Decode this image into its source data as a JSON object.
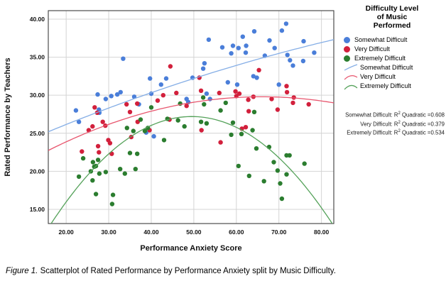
{
  "figure": {
    "caption": {
      "label": "Figure 1.",
      "text": " Scatterplot of Rated Performance by Performance Anxiety split by Music Difficulty."
    }
  },
  "chart_data": {
    "type": "scatter",
    "title": "",
    "xlabel": "Performance Anxiety Score",
    "ylabel": "Rated Performance by Teachers",
    "xlim": [
      15.8,
      82.9
    ],
    "ylim": [
      13.13,
      41.12
    ],
    "xticks": [
      20,
      30,
      40,
      50,
      60,
      70,
      80
    ],
    "yticks": [
      15,
      20,
      25,
      30,
      35,
      40
    ],
    "tick_decimals": 2,
    "grid": true,
    "grid_color": "#d4d4d4",
    "frame_color": "#3d3d3d",
    "legend_position": "right",
    "legend": {
      "title_lines": [
        "Difficulty Level",
        "of Music",
        "Performed"
      ],
      "dot_items": [
        "Somewhat Difficult",
        "Very Difficult",
        "Extremely Difficult"
      ],
      "line_items": [
        "Somewhat Difficult",
        "Very Difficult",
        "Extremely Difficult"
      ]
    },
    "r2_annotations": [
      {
        "pre": "Somewhat Difficult: R",
        "sup": "2",
        "post": " Quadratic =0.608"
      },
      {
        "pre": "Very Difficult: R",
        "sup": "2",
        "post": " Quadratic =0.379"
      },
      {
        "pre": "Extremely Difficult: R",
        "sup": "2",
        "post": " Quadratic =0.534"
      }
    ],
    "series": [
      {
        "name": "Somewhat Difficult",
        "marker_color": "#4a7ed9",
        "line_color": "#85aee6",
        "r2_quadratic": 0.608,
        "fit": {
          "type": "quadratic",
          "a": 21.386,
          "b": 0.25298,
          "c": -0.000734
        },
        "points": [
          [
            22.3,
            28.0
          ],
          [
            23.0,
            26.5
          ],
          [
            27.4,
            30.1
          ],
          [
            27.7,
            28.1
          ],
          [
            27.8,
            27.7
          ],
          [
            29.3,
            29.5
          ],
          [
            30.6,
            29.9
          ],
          [
            32.0,
            30.1
          ],
          [
            32.8,
            30.4
          ],
          [
            33.4,
            34.8
          ],
          [
            36.0,
            29.8
          ],
          [
            37.1,
            28.8
          ],
          [
            38.8,
            25.1
          ],
          [
            39.7,
            32.2
          ],
          [
            40.0,
            30.2
          ],
          [
            40.6,
            24.6
          ],
          [
            42.3,
            31.4
          ],
          [
            43.5,
            32.2
          ],
          [
            48.3,
            29.5
          ],
          [
            48.7,
            29.1
          ],
          [
            49.7,
            32.3
          ],
          [
            52.2,
            33.5
          ],
          [
            52.5,
            34.2
          ],
          [
            53.0,
            30.2
          ],
          [
            53.5,
            37.3
          ],
          [
            53.8,
            29.5
          ],
          [
            56.7,
            36.3
          ],
          [
            58.0,
            31.7
          ],
          [
            58.8,
            35.5
          ],
          [
            59.2,
            36.5
          ],
          [
            60.2,
            31.4
          ],
          [
            60.5,
            36.2
          ],
          [
            61.5,
            37.7
          ],
          [
            62.2,
            35.6
          ],
          [
            62.3,
            36.5
          ],
          [
            64.0,
            32.5
          ],
          [
            64.2,
            38.4
          ],
          [
            64.8,
            32.3
          ],
          [
            66.7,
            35.2
          ],
          [
            67.8,
            37.2
          ],
          [
            69.0,
            36.2
          ],
          [
            70.0,
            31.4
          ],
          [
            70.7,
            38.5
          ],
          [
            71.7,
            39.4
          ],
          [
            72.0,
            35.3
          ],
          [
            72.6,
            34.6
          ],
          [
            73.3,
            33.9
          ],
          [
            75.7,
            34.5
          ],
          [
            75.8,
            37.1
          ],
          [
            78.3,
            35.6
          ]
        ]
      },
      {
        "name": "Very Difficult",
        "marker_color": "#d2203c",
        "line_color": "#e8566e",
        "r2_quadratic": 0.379,
        "fit": {
          "type": "quadratic",
          "a": 17.6,
          "b": 0.3696,
          "c": -0.0028
        },
        "points": [
          [
            23.7,
            22.6
          ],
          [
            25.3,
            25.4
          ],
          [
            26.2,
            25.9
          ],
          [
            26.7,
            28.4
          ],
          [
            27.3,
            27.7
          ],
          [
            27.5,
            23.3
          ],
          [
            27.7,
            22.5
          ],
          [
            28.6,
            26.5
          ],
          [
            29.2,
            26.0
          ],
          [
            29.9,
            24.1
          ],
          [
            30.3,
            23.7
          ],
          [
            30.7,
            22.3
          ],
          [
            34.2,
            28.8
          ],
          [
            35.0,
            27.8
          ],
          [
            35.3,
            24.5
          ],
          [
            36.7,
            28.9
          ],
          [
            36.8,
            26.5
          ],
          [
            39.6,
            25.4
          ],
          [
            41.5,
            29.3
          ],
          [
            42.8,
            30.0
          ],
          [
            44.3,
            26.8
          ],
          [
            44.5,
            33.8
          ],
          [
            45.9,
            30.3
          ],
          [
            48.3,
            28.6
          ],
          [
            51.3,
            32.3
          ],
          [
            51.7,
            30.6
          ],
          [
            51.8,
            25.4
          ],
          [
            56.0,
            30.3
          ],
          [
            56.3,
            23.8
          ],
          [
            59.8,
            30.5
          ],
          [
            60.0,
            29.9
          ],
          [
            60.7,
            30.2
          ],
          [
            61.3,
            25.6
          ],
          [
            62.2,
            25.8
          ],
          [
            62.8,
            29.4
          ],
          [
            62.9,
            27.9
          ],
          [
            64.0,
            29.8
          ],
          [
            65.3,
            33.3
          ],
          [
            68.3,
            29.5
          ],
          [
            69.7,
            28.1
          ],
          [
            71.8,
            31.2
          ],
          [
            71.9,
            30.4
          ],
          [
            73.3,
            29.0
          ],
          [
            73.5,
            29.7
          ],
          [
            77.0,
            28.8
          ]
        ]
      },
      {
        "name": "Extremely Difficult",
        "marker_color": "#2b7d2f",
        "line_color": "#55a25a",
        "r2_quadratic": 0.534,
        "fit": {
          "type": "quadratic",
          "a": -4.41,
          "b": 1.2771,
          "c": -0.0129
        },
        "points": [
          [
            23.0,
            19.3
          ],
          [
            24.0,
            21.7
          ],
          [
            25.8,
            20.0
          ],
          [
            26.2,
            18.8
          ],
          [
            26.3,
            21.2
          ],
          [
            26.6,
            20.6
          ],
          [
            27.0,
            20.7
          ],
          [
            27.0,
            17.0
          ],
          [
            27.5,
            21.5
          ],
          [
            27.8,
            19.7
          ],
          [
            29.3,
            19.9
          ],
          [
            30.8,
            15.7
          ],
          [
            31.0,
            16.9
          ],
          [
            32.7,
            20.3
          ],
          [
            33.8,
            19.7
          ],
          [
            34.3,
            25.7
          ],
          [
            35.0,
            22.4
          ],
          [
            35.8,
            25.3
          ],
          [
            36.3,
            20.3
          ],
          [
            36.7,
            22.3
          ],
          [
            37.5,
            26.8
          ],
          [
            38.5,
            25.3
          ],
          [
            39.2,
            25.7
          ],
          [
            40.0,
            28.4
          ],
          [
            43.0,
            24.1
          ],
          [
            43.8,
            26.9
          ],
          [
            46.3,
            26.7
          ],
          [
            46.8,
            28.9
          ],
          [
            47.8,
            25.9
          ],
          [
            51.7,
            26.5
          ],
          [
            52.2,
            29.7
          ],
          [
            52.4,
            28.8
          ],
          [
            53.0,
            26.3
          ],
          [
            56.3,
            28.0
          ],
          [
            57.5,
            29.0
          ],
          [
            58.8,
            24.8
          ],
          [
            59.2,
            26.4
          ],
          [
            60.5,
            20.7
          ],
          [
            61.2,
            24.9
          ],
          [
            63.0,
            19.4
          ],
          [
            63.8,
            25.4
          ],
          [
            64.2,
            27.8
          ],
          [
            64.7,
            23.0
          ],
          [
            66.5,
            18.7
          ],
          [
            67.7,
            23.2
          ],
          [
            68.8,
            21.2
          ],
          [
            69.7,
            20.1
          ],
          [
            70.3,
            18.4
          ],
          [
            70.7,
            16.4
          ],
          [
            71.8,
            22.1
          ],
          [
            71.8,
            19.6
          ],
          [
            72.5,
            22.1
          ],
          [
            76.0,
            21.0
          ]
        ]
      }
    ]
  }
}
